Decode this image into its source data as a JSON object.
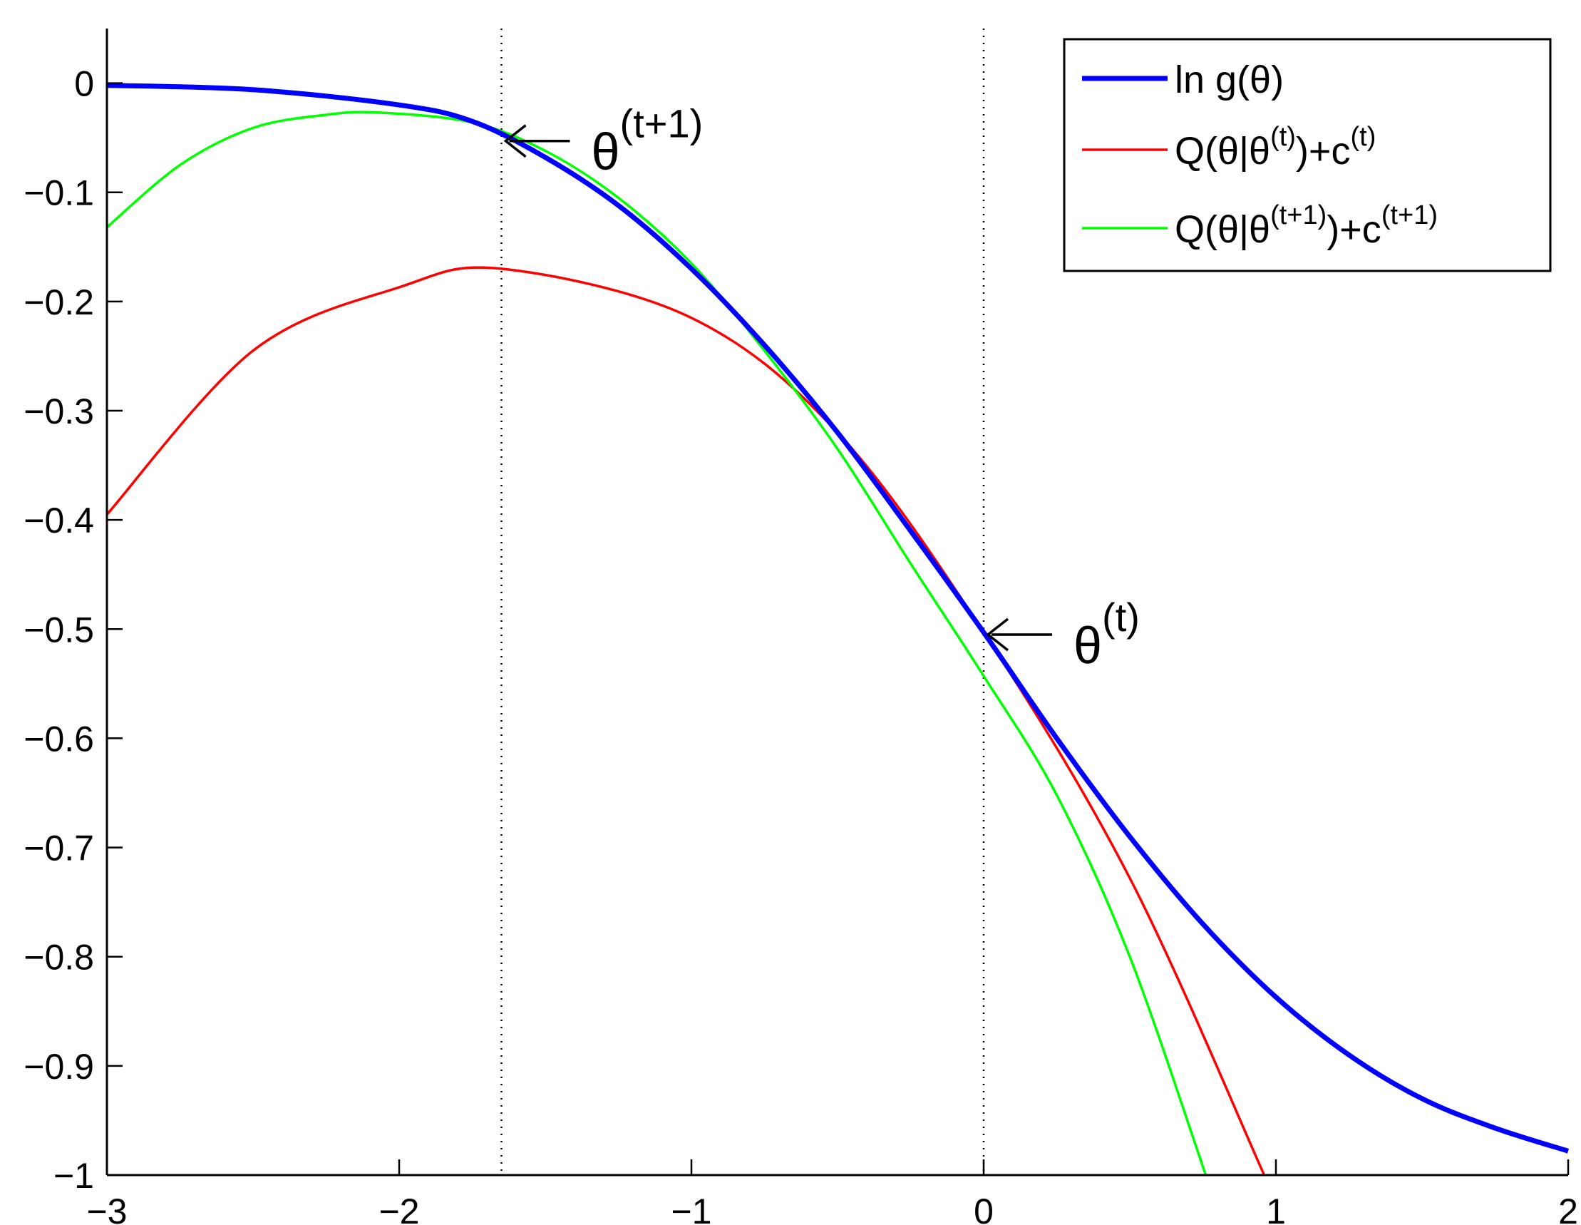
{
  "chart_data": {
    "type": "line",
    "title": "",
    "xlabel": "",
    "ylabel": "",
    "xlim": [
      -3,
      2
    ],
    "ylim": [
      -1,
      0.05
    ],
    "grid": false,
    "legend_position": "top-right",
    "x_ticks": [
      -3,
      -2,
      -1,
      0,
      1,
      2
    ],
    "x_tick_labels": [
      "−3",
      "−2",
      "−1",
      "0",
      "1",
      "2"
    ],
    "y_ticks": [
      0,
      -0.1,
      -0.2,
      -0.3,
      -0.4,
      -0.5,
      -0.6,
      -0.7,
      -0.8,
      -0.9,
      -1
    ],
    "y_tick_labels": [
      "0",
      "−0.1",
      "−0.2",
      "−0.3",
      "−0.4",
      "−0.5",
      "−0.6",
      "−0.7",
      "−0.8",
      "−0.9",
      "−1"
    ],
    "vertical_reference_lines": [
      -1.65,
      0
    ],
    "series": [
      {
        "name": "ln g(θ)",
        "label_main": "ln g(θ)",
        "color": "#0000ff",
        "x": [
          -3.0,
          -2.5,
          -2.0,
          -1.75,
          -1.5,
          -1.25,
          -1.0,
          -0.75,
          -0.5,
          -0.25,
          0.0,
          0.25,
          0.5,
          0.75,
          1.0,
          1.25,
          1.5,
          1.75,
          2.0
        ],
        "y": [
          -0.002,
          -0.006,
          -0.02,
          -0.035,
          -0.068,
          -0.112,
          -0.17,
          -0.24,
          -0.32,
          -0.41,
          -0.503,
          -0.6,
          -0.69,
          -0.77,
          -0.837,
          -0.89,
          -0.93,
          -0.957,
          -0.978
        ]
      },
      {
        "name": "Q(θ|θ(t))+c(t)",
        "label_main": "Q(θ|θ",
        "label_sup1": "(t)",
        "label_mid": ")+c",
        "label_sup2": "(t)",
        "color": "#ff0000",
        "x": [
          -3.0,
          -2.5,
          -2.0,
          -1.65,
          -1.0,
          -0.5,
          0.0,
          0.5,
          0.96
        ],
        "y": [
          -0.395,
          -0.245,
          -0.187,
          -0.17,
          -0.215,
          -0.32,
          -0.503,
          -0.728,
          -1.0
        ]
      },
      {
        "name": "Q(θ|θ(t+1))+c(t+1)",
        "label_main": "Q(θ|θ",
        "label_sup1": "(t+1)",
        "label_mid": ")+c",
        "label_sup2": "(t+1)",
        "color": "#00ff00",
        "x": [
          -3.0,
          -2.75,
          -2.5,
          -2.25,
          -2.07,
          -1.75,
          -1.5,
          -1.25,
          -1.0,
          -0.75,
          -0.5,
          -0.25,
          0.0,
          0.25,
          0.5,
          0.76
        ],
        "y": [
          -0.132,
          -0.075,
          -0.041,
          -0.029,
          -0.027,
          -0.036,
          -0.062,
          -0.105,
          -0.165,
          -0.245,
          -0.335,
          -0.44,
          -0.543,
          -0.652,
          -0.8,
          -1.0
        ]
      }
    ],
    "annotations": [
      {
        "text": "θ",
        "sup": "(t+1)",
        "x": -1.65,
        "y": -0.053
      },
      {
        "text": "θ",
        "sup": "(t)",
        "x": 0.0,
        "y": -0.505
      }
    ]
  }
}
